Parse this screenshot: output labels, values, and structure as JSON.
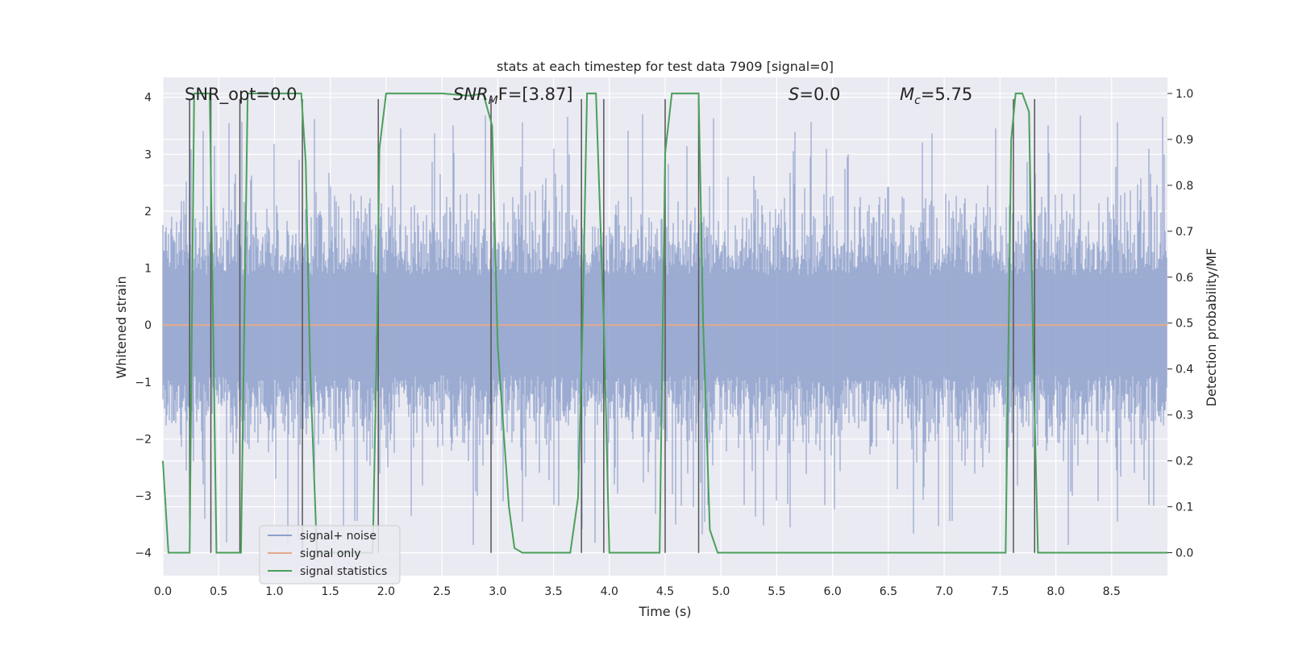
{
  "chart_data": {
    "type": "line",
    "title": "stats at each timestep for test data 7909 [signal=0]",
    "xlabel": "Time (s)",
    "ylabel": "Whitened strain",
    "y2label": "Detection probability/MF",
    "xlim": [
      0.0,
      9.0
    ],
    "ylim": [
      -4.4,
      4.35
    ],
    "y2lim": [
      -0.05,
      1.035
    ],
    "xticks": [
      0.0,
      0.5,
      1.0,
      1.5,
      2.0,
      2.5,
      3.0,
      3.5,
      4.0,
      4.5,
      5.0,
      5.5,
      6.0,
      6.5,
      7.0,
      7.5,
      8.0,
      8.5
    ],
    "xtick_labels": [
      "0.0",
      "0.5",
      "1.0",
      "1.5",
      "2.0",
      "2.5",
      "3.0",
      "3.5",
      "4.0",
      "4.5",
      "5.0",
      "5.5",
      "6.0",
      "6.5",
      "7.0",
      "7.5",
      "8.0",
      "8.5"
    ],
    "yticks": [
      -4,
      -3,
      -2,
      -1,
      0,
      1,
      2,
      3,
      4
    ],
    "ytick_labels": [
      "−4",
      "−3",
      "−2",
      "−1",
      "0",
      "1",
      "2",
      "3",
      "4"
    ],
    "y2ticks": [
      0.0,
      0.1,
      0.2,
      0.3,
      0.4,
      0.5,
      0.6,
      0.7,
      0.8,
      0.9,
      1.0
    ],
    "y2tick_labels": [
      "0.0",
      "0.1",
      "0.2",
      "0.3",
      "0.4",
      "0.5",
      "0.6",
      "0.7",
      "0.8",
      "0.9",
      "1.0"
    ],
    "grid": true,
    "legend": {
      "placement": "lower-left",
      "entries": [
        {
          "label": "signal+ noise",
          "color": "#8da0cb"
        },
        {
          "label": "signal only",
          "color": "#e5a98a"
        },
        {
          "label": "signal statistics",
          "color": "#4aa05a"
        }
      ]
    },
    "annotations": [
      {
        "key": "snr_opt",
        "text": "SNR_opt=0.0"
      },
      {
        "key": "snr_mf",
        "prefix": "SNR",
        "sub": "M",
        "suffix": "F=[3.87]"
      },
      {
        "key": "s",
        "prefix": "S",
        "suffix": "=0.0"
      },
      {
        "key": "mc",
        "prefix": "M",
        "sub": "c",
        "suffix": "=5.75"
      }
    ],
    "series": [
      {
        "name": "signal+ noise",
        "axis": "left",
        "style": "noise-band",
        "color": "#8da0cb",
        "typical_range": [
          -1.6,
          1.6
        ],
        "peak_range": [
          -3.9,
          3.75
        ]
      },
      {
        "name": "signal only",
        "axis": "left",
        "color": "#e5a98a",
        "x": [
          0.0,
          9.0
        ],
        "y": [
          0.0,
          0.0
        ]
      },
      {
        "name": "signal statistics",
        "axis": "right",
        "color": "#4aa05a",
        "x": [
          0.0,
          0.05,
          0.1,
          0.18,
          0.24,
          0.28,
          0.42,
          0.45,
          0.48,
          0.55,
          0.65,
          0.68,
          0.7,
          0.76,
          1.0,
          1.24,
          1.28,
          1.32,
          1.38,
          1.88,
          1.92,
          1.94,
          2.0,
          2.5,
          2.75,
          2.87,
          2.95,
          3.0,
          3.1,
          3.15,
          3.22,
          3.5,
          3.65,
          3.72,
          3.76,
          3.8,
          3.88,
          3.95,
          4.0,
          4.2,
          4.45,
          4.5,
          4.56,
          4.8,
          4.84,
          4.9,
          4.97,
          5.5,
          5.72,
          5.78,
          6.0,
          7.55,
          7.6,
          7.64,
          7.7,
          7.76,
          7.8,
          7.84,
          7.88,
          9.0
        ],
        "y": [
          0.2,
          0.0,
          0.0,
          0.0,
          0.0,
          1.0,
          1.0,
          0.5,
          0.0,
          0.0,
          0.0,
          0.0,
          0.0,
          1.0,
          1.0,
          1.0,
          0.85,
          0.4,
          0.0,
          0.0,
          0.5,
          0.88,
          1.0,
          1.0,
          0.995,
          1.0,
          0.93,
          0.45,
          0.1,
          0.01,
          0.0,
          0.0,
          0.0,
          0.12,
          0.5,
          1.0,
          1.0,
          0.5,
          0.0,
          0.0,
          0.0,
          0.87,
          1.0,
          1.0,
          0.5,
          0.05,
          0.0,
          0.0,
          0.0,
          0.0,
          0.0,
          0.0,
          0.9,
          1.0,
          1.0,
          0.96,
          0.4,
          0.0,
          0.0,
          0.0
        ]
      }
    ],
    "event_markers_x": [
      0.24,
      0.43,
      0.69,
      1.25,
      1.93,
      2.94,
      3.75,
      3.95,
      4.5,
      4.8,
      7.62,
      7.81
    ]
  }
}
